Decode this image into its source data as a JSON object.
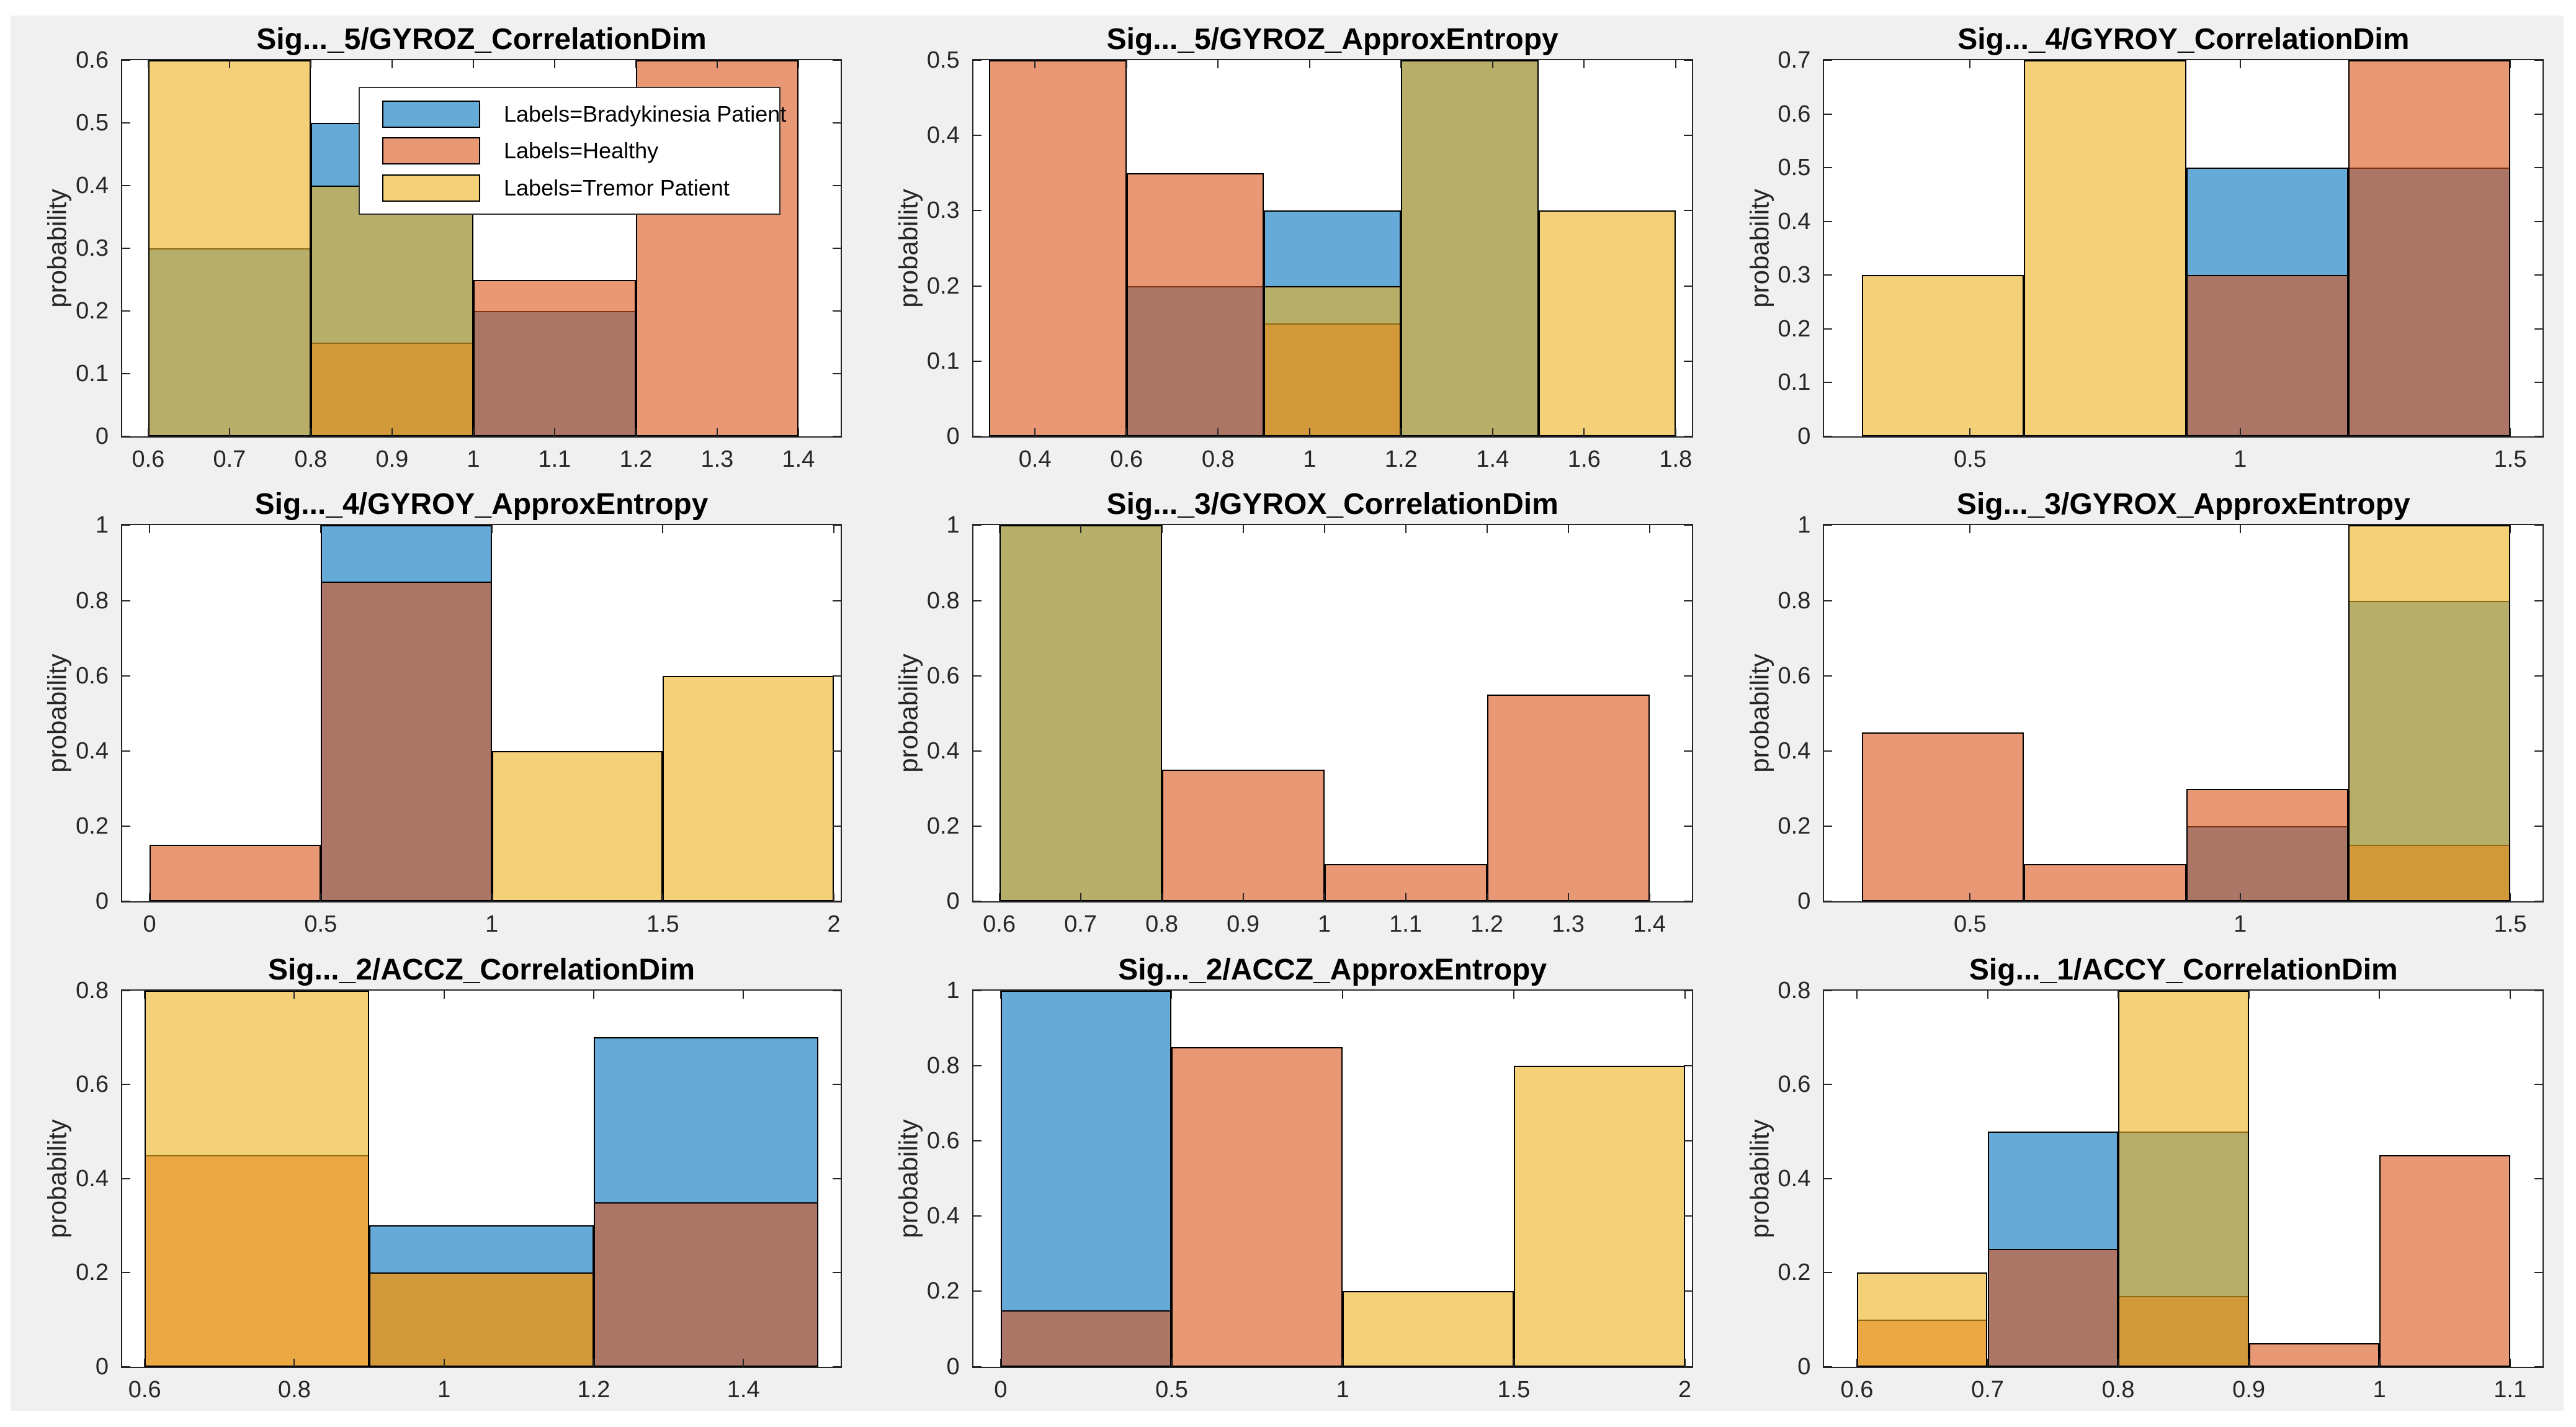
{
  "figure": {
    "background_color": "#f0f0f0",
    "outer_background_color": "#ffffff",
    "axes_background_color": "#ffffff",
    "axis_color": "#262626",
    "bar_edge_color": "#000000",
    "face_alpha": 0.6,
    "ylabel": "probability"
  },
  "series": [
    {
      "key": "bradykinesia",
      "label": "Labels=Bradykinesia Patient",
      "color": "#0072BD"
    },
    {
      "key": "healthy",
      "label": "Labels=Healthy",
      "color": "#D95319"
    },
    {
      "key": "tremor",
      "label": "Labels=Tremor Patient",
      "color": "#EDB120"
    }
  ],
  "legend": {
    "entries": [
      {
        "series": "bradykinesia",
        "label": "Labels=Bradykinesia Patient"
      },
      {
        "series": "healthy",
        "label": "Labels=Healthy"
      },
      {
        "series": "tremor",
        "label": "Labels=Tremor Patient"
      }
    ],
    "position": "top-right-of-first-subplot"
  },
  "chart_data": [
    {
      "type": "bar",
      "subtype": "overlaid-histogram",
      "title": "Sig..._5/GYROZ_CorrelationDim",
      "ylabel": "probability",
      "bin_edges": [
        0.6,
        0.8,
        1.0,
        1.2,
        1.4
      ],
      "series": [
        {
          "name": "Labels=Bradykinesia Patient",
          "values": [
            0.3,
            0.5,
            0.2,
            0
          ]
        },
        {
          "name": "Labels=Healthy",
          "values": [
            0,
            0.15,
            0.25,
            0.6
          ]
        },
        {
          "name": "Labels=Tremor Patient",
          "values": [
            0.6,
            0.4,
            0,
            0
          ]
        }
      ],
      "xlim": [
        0.568,
        1.452
      ],
      "ylim": [
        0,
        0.6
      ],
      "xtick_values": [
        0.6,
        0.7,
        0.8,
        0.9,
        1,
        1.1,
        1.2,
        1.3,
        1.4
      ],
      "xtick_labels": [
        "0.6",
        "0.7",
        "0.8",
        "0.9",
        "1",
        "1.1",
        "1.2",
        "1.3",
        "1.4"
      ],
      "ytick_values": [
        0,
        0.1,
        0.2,
        0.3,
        0.4,
        0.5,
        0.6
      ],
      "ytick_labels": [
        "0",
        "0.1",
        "0.2",
        "0.3",
        "0.4",
        "0.5",
        "0.6"
      ],
      "legend_visible": true
    },
    {
      "type": "bar",
      "subtype": "overlaid-histogram",
      "title": "Sig..._5/GYROZ_ApproxEntropy",
      "ylabel": "probability",
      "bin_edges": [
        0.3,
        0.6,
        0.9,
        1.2,
        1.5,
        1.8
      ],
      "series": [
        {
          "name": "Labels=Bradykinesia Patient",
          "values": [
            0,
            0.2,
            0.3,
            0.5,
            0
          ]
        },
        {
          "name": "Labels=Healthy",
          "values": [
            0.5,
            0.35,
            0.15,
            0,
            0
          ]
        },
        {
          "name": "Labels=Tremor Patient",
          "values": [
            0,
            0,
            0.2,
            0.5,
            0.3
          ]
        }
      ],
      "xlim": [
        0.265,
        1.835
      ],
      "ylim": [
        0,
        0.5
      ],
      "xtick_values": [
        0.4,
        0.6,
        0.8,
        1,
        1.2,
        1.4,
        1.6,
        1.8
      ],
      "xtick_labels": [
        "0.4",
        "0.6",
        "0.8",
        "1",
        "1.2",
        "1.4",
        "1.6",
        "1.8"
      ],
      "ytick_values": [
        0,
        0.1,
        0.2,
        0.3,
        0.4,
        0.5
      ],
      "ytick_labels": [
        "0",
        "0.1",
        "0.2",
        "0.3",
        "0.4",
        "0.5"
      ],
      "legend_visible": false
    },
    {
      "type": "bar",
      "subtype": "overlaid-histogram",
      "title": "Sig..._4/GYROY_CorrelationDim",
      "ylabel": "probability",
      "bin_edges": [
        0.3,
        0.6,
        0.9,
        1.2,
        1.5
      ],
      "series": [
        {
          "name": "Labels=Bradykinesia Patient",
          "values": [
            0,
            0,
            0.5,
            0.5
          ]
        },
        {
          "name": "Labels=Healthy",
          "values": [
            0,
            0,
            0.3,
            0.7
          ]
        },
        {
          "name": "Labels=Tremor Patient",
          "values": [
            0.3,
            0.7,
            0,
            0
          ]
        }
      ],
      "xlim": [
        0.23,
        1.56
      ],
      "ylim": [
        0,
        0.7
      ],
      "xtick_values": [
        0.5,
        1,
        1.5
      ],
      "xtick_labels": [
        "0.5",
        "1",
        "1.5"
      ],
      "ytick_values": [
        0,
        0.1,
        0.2,
        0.3,
        0.4,
        0.5,
        0.6,
        0.7
      ],
      "ytick_labels": [
        "0",
        "0.1",
        "0.2",
        "0.3",
        "0.4",
        "0.5",
        "0.6",
        "0.7"
      ],
      "legend_visible": false
    },
    {
      "type": "bar",
      "subtype": "overlaid-histogram",
      "title": "Sig..._4/GYROY_ApproxEntropy",
      "ylabel": "probability",
      "bin_edges": [
        0,
        0.5,
        1,
        1.5,
        2
      ],
      "series": [
        {
          "name": "Labels=Bradykinesia Patient",
          "values": [
            0,
            1,
            0,
            0
          ]
        },
        {
          "name": "Labels=Healthy",
          "values": [
            0.15,
            0.85,
            0,
            0
          ]
        },
        {
          "name": "Labels=Tremor Patient",
          "values": [
            0,
            0,
            0.4,
            0.6
          ]
        }
      ],
      "xlim": [
        -0.08,
        2.02
      ],
      "ylim": [
        0,
        1
      ],
      "xtick_values": [
        0,
        0.5,
        1,
        1.5,
        2
      ],
      "xtick_labels": [
        "0",
        "0.5",
        "1",
        "1.5",
        "2"
      ],
      "ytick_values": [
        0,
        0.2,
        0.4,
        0.6,
        0.8,
        1
      ],
      "ytick_labels": [
        "0",
        "0.2",
        "0.4",
        "0.6",
        "0.8",
        "1"
      ],
      "legend_visible": false
    },
    {
      "type": "bar",
      "subtype": "overlaid-histogram",
      "title": "Sig..._3/GYROX_CorrelationDim",
      "ylabel": "probability",
      "bin_edges": [
        0.6,
        0.8,
        1.0,
        1.2,
        1.4
      ],
      "series": [
        {
          "name": "Labels=Bradykinesia Patient",
          "values": [
            1,
            0,
            0,
            0
          ]
        },
        {
          "name": "Labels=Healthy",
          "values": [
            0,
            0.35,
            0.1,
            0.55
          ]
        },
        {
          "name": "Labels=Tremor Patient",
          "values": [
            1,
            0,
            0,
            0
          ]
        }
      ],
      "xlim": [
        0.568,
        1.452
      ],
      "ylim": [
        0,
        1
      ],
      "xtick_values": [
        0.6,
        0.7,
        0.8,
        0.9,
        1,
        1.1,
        1.2,
        1.3,
        1.4
      ],
      "xtick_labels": [
        "0.6",
        "0.7",
        "0.8",
        "0.9",
        "1",
        "1.1",
        "1.2",
        "1.3",
        "1.4"
      ],
      "ytick_values": [
        0,
        0.2,
        0.4,
        0.6,
        0.8,
        1
      ],
      "ytick_labels": [
        "0",
        "0.2",
        "0.4",
        "0.6",
        "0.8",
        "1"
      ],
      "legend_visible": false
    },
    {
      "type": "bar",
      "subtype": "overlaid-histogram",
      "title": "Sig..._3/GYROX_ApproxEntropy",
      "ylabel": "probability",
      "bin_edges": [
        0.3,
        0.6,
        0.9,
        1.2,
        1.5
      ],
      "series": [
        {
          "name": "Labels=Bradykinesia Patient",
          "values": [
            0,
            0,
            0.2,
            0.8
          ]
        },
        {
          "name": "Labels=Healthy",
          "values": [
            0.45,
            0.1,
            0.3,
            0.15
          ]
        },
        {
          "name": "Labels=Tremor Patient",
          "values": [
            0,
            0,
            0,
            1
          ]
        }
      ],
      "xlim": [
        0.23,
        1.56
      ],
      "ylim": [
        0,
        1
      ],
      "xtick_values": [
        0.5,
        1,
        1.5
      ],
      "xtick_labels": [
        "0.5",
        "1",
        "1.5"
      ],
      "ytick_values": [
        0,
        0.2,
        0.4,
        0.6,
        0.8,
        1
      ],
      "ytick_labels": [
        "0",
        "0.2",
        "0.4",
        "0.6",
        "0.8",
        "1"
      ],
      "legend_visible": false
    },
    {
      "type": "bar",
      "subtype": "overlaid-histogram",
      "title": "Sig..._2/ACCZ_CorrelationDim",
      "ylabel": "probability",
      "bin_edges": [
        0.6,
        0.9,
        1.2,
        1.5
      ],
      "series": [
        {
          "name": "Labels=Bradykinesia Patient",
          "values": [
            0,
            0.3,
            0.7
          ]
        },
        {
          "name": "Labels=Healthy",
          "values": [
            0.45,
            0.2,
            0.35
          ]
        },
        {
          "name": "Labels=Tremor Patient",
          "values": [
            0.8,
            0.2,
            0
          ]
        }
      ],
      "xlim": [
        0.57,
        1.53
      ],
      "ylim": [
        0,
        0.8
      ],
      "xtick_values": [
        0.6,
        0.8,
        1,
        1.2,
        1.4
      ],
      "xtick_labels": [
        "0.6",
        "0.8",
        "1",
        "1.2",
        "1.4"
      ],
      "ytick_values": [
        0,
        0.2,
        0.4,
        0.6,
        0.8
      ],
      "ytick_labels": [
        "0",
        "0.2",
        "0.4",
        "0.6",
        "0.8"
      ],
      "legend_visible": false
    },
    {
      "type": "bar",
      "subtype": "overlaid-histogram",
      "title": "Sig..._2/ACCZ_ApproxEntropy",
      "ylabel": "probability",
      "bin_edges": [
        0,
        0.5,
        1,
        1.5,
        2
      ],
      "series": [
        {
          "name": "Labels=Bradykinesia Patient",
          "values": [
            1,
            0,
            0,
            0
          ]
        },
        {
          "name": "Labels=Healthy",
          "values": [
            0.15,
            0.85,
            0,
            0
          ]
        },
        {
          "name": "Labels=Tremor Patient",
          "values": [
            0,
            0,
            0.2,
            0.8
          ]
        }
      ],
      "xlim": [
        -0.08,
        2.02
      ],
      "ylim": [
        0,
        1
      ],
      "xtick_values": [
        0,
        0.5,
        1,
        1.5,
        2
      ],
      "xtick_labels": [
        "0",
        "0.5",
        "1",
        "1.5",
        "2"
      ],
      "ytick_values": [
        0,
        0.2,
        0.4,
        0.6,
        0.8,
        1
      ],
      "ytick_labels": [
        "0",
        "0.2",
        "0.4",
        "0.6",
        "0.8",
        "1"
      ],
      "legend_visible": false
    },
    {
      "type": "bar",
      "subtype": "overlaid-histogram",
      "title": "Sig..._1/ACCY_CorrelationDim",
      "ylabel": "probability",
      "bin_edges": [
        0.6,
        0.7,
        0.8,
        0.9,
        1,
        1.1
      ],
      "series": [
        {
          "name": "Labels=Bradykinesia Patient",
          "values": [
            0,
            0.5,
            0.5,
            0,
            0
          ]
        },
        {
          "name": "Labels=Healthy",
          "values": [
            0.1,
            0.25,
            0.15,
            0.05,
            0.45
          ]
        },
        {
          "name": "Labels=Tremor Patient",
          "values": [
            0.2,
            0,
            0.8,
            0,
            0
          ]
        }
      ],
      "xlim": [
        0.575,
        1.125
      ],
      "ylim": [
        0,
        0.8
      ],
      "xtick_values": [
        0.6,
        0.7,
        0.8,
        0.9,
        1,
        1.1
      ],
      "xtick_labels": [
        "0.6",
        "0.7",
        "0.8",
        "0.9",
        "1",
        "1.1"
      ],
      "ytick_values": [
        0,
        0.2,
        0.4,
        0.6,
        0.8
      ],
      "ytick_labels": [
        "0",
        "0.2",
        "0.4",
        "0.6",
        "0.8"
      ],
      "legend_visible": false
    }
  ]
}
